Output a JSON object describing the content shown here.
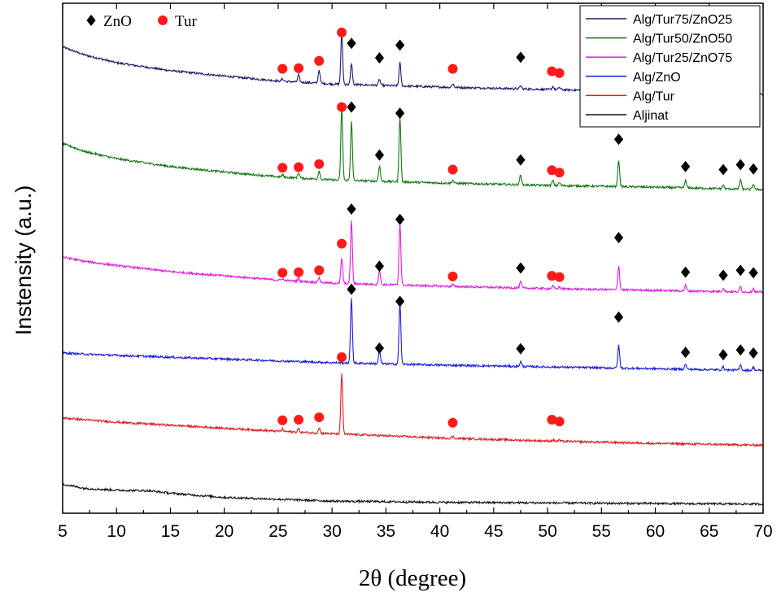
{
  "chart_data": {
    "type": "line",
    "xlabel": "2θ (degree)",
    "ylabel": "Instensity (a.u.)",
    "xlim": [
      5,
      70
    ],
    "xticks": [
      5,
      10,
      15,
      20,
      25,
      30,
      35,
      40,
      45,
      50,
      55,
      60,
      65,
      70
    ],
    "yticks_shown": false,
    "legend_position": "top-right",
    "marker_legend": [
      {
        "symbol": "diamond",
        "label": "ZnO",
        "color": "#000000"
      },
      {
        "symbol": "circle",
        "label": "Tur",
        "color": "#ff1a1a"
      }
    ],
    "series": [
      {
        "name": "Alg/Tur75/ZnO25",
        "color": "#1a1a70",
        "offset": 68.2,
        "baseline": [
          [
            5,
            8.6
          ],
          [
            7,
            7.3
          ],
          [
            10,
            6.0
          ],
          [
            15,
            4.7
          ],
          [
            20,
            3.8
          ],
          [
            25,
            3.0
          ],
          [
            30,
            2.5
          ],
          [
            40,
            2.0
          ],
          [
            50,
            1.6
          ],
          [
            60,
            1.2
          ],
          [
            70,
            0.8
          ]
        ],
        "peaks": [
          [
            25.4,
            0.4
          ],
          [
            26.9,
            1.2
          ],
          [
            28.8,
            2.2
          ],
          [
            30.9,
            8.5
          ],
          [
            31.8,
            3.5
          ],
          [
            34.4,
            1.0
          ],
          [
            36.3,
            3.8
          ],
          [
            41.2,
            0.6
          ],
          [
            47.5,
            0.5
          ],
          [
            50.5,
            0.5
          ],
          [
            51.1,
            0.4
          ],
          [
            56.6,
            1.4
          ],
          [
            62.8,
            0.4
          ],
          [
            66.3,
            0.3
          ],
          [
            67.9,
            0.7
          ],
          [
            69.1,
            0.4
          ]
        ],
        "markers": [
          [
            "circle",
            25.4,
            73.2
          ],
          [
            "circle",
            26.9,
            73.3
          ],
          [
            "circle",
            28.8,
            74.5
          ],
          [
            "circle",
            30.9,
            79.2
          ],
          [
            "diamond",
            31.8,
            77.4
          ],
          [
            "diamond",
            34.4,
            75.0
          ],
          [
            "diamond",
            36.3,
            77.1
          ],
          [
            "circle",
            41.2,
            73.2
          ],
          [
            "diamond",
            47.5,
            75.1
          ],
          [
            "circle",
            50.4,
            72.8
          ],
          [
            "circle",
            51.1,
            72.5
          ],
          [
            "diamond",
            56.6,
            74.8
          ],
          [
            "diamond",
            62.8,
            72.4
          ],
          [
            "diamond",
            66.3,
            72.2
          ],
          [
            "diamond",
            67.9,
            73.0
          ],
          [
            "diamond",
            69.1,
            72.4
          ]
        ]
      },
      {
        "name": "Alg/Tur50/ZnO50",
        "color": "#117711",
        "offset": 52.6,
        "baseline": [
          [
            5,
            8.3
          ],
          [
            7,
            7.0
          ],
          [
            10,
            5.8
          ],
          [
            15,
            4.5
          ],
          [
            20,
            3.6
          ],
          [
            25,
            2.8
          ],
          [
            30,
            2.3
          ],
          [
            40,
            1.8
          ],
          [
            50,
            1.4
          ],
          [
            60,
            1.1
          ],
          [
            70,
            0.7
          ]
        ],
        "peaks": [
          [
            25.4,
            0.4
          ],
          [
            26.9,
            0.9
          ],
          [
            28.8,
            1.4
          ],
          [
            30.9,
            12.0
          ],
          [
            31.8,
            9.8
          ],
          [
            34.4,
            2.6
          ],
          [
            36.3,
            10.8
          ],
          [
            41.2,
            0.5
          ],
          [
            47.5,
            1.7
          ],
          [
            50.5,
            0.8
          ],
          [
            51.1,
            0.5
          ],
          [
            56.6,
            4.4
          ],
          [
            62.8,
            1.2
          ],
          [
            66.3,
            0.6
          ],
          [
            67.9,
            1.6
          ],
          [
            69.1,
            0.9
          ]
        ],
        "markers": [
          [
            "circle",
            25.4,
            56.9
          ],
          [
            "circle",
            26.9,
            57.0
          ],
          [
            "circle",
            28.8,
            57.5
          ],
          [
            "circle",
            30.9,
            66.9
          ],
          [
            "diamond",
            31.8,
            66.9
          ],
          [
            "diamond",
            34.4,
            59.0
          ],
          [
            "diamond",
            36.3,
            65.9
          ],
          [
            "circle",
            41.2,
            56.6
          ],
          [
            "diamond",
            47.5,
            58.2
          ],
          [
            "circle",
            50.4,
            56.5
          ],
          [
            "circle",
            51.1,
            56.1
          ],
          [
            "diamond",
            56.6,
            61.6
          ],
          [
            "diamond",
            62.8,
            57.1
          ],
          [
            "diamond",
            66.3,
            56.6
          ],
          [
            "diamond",
            67.9,
            57.4
          ],
          [
            "diamond",
            69.1,
            56.7
          ]
        ]
      },
      {
        "name": "Alg/Tur25/ZnO75",
        "color": "#e11ae1",
        "offset": 35.8,
        "baseline": [
          [
            5,
            6.4
          ],
          [
            7,
            5.7
          ],
          [
            10,
            5.0
          ],
          [
            15,
            4.0
          ],
          [
            20,
            3.3
          ],
          [
            25,
            2.6
          ],
          [
            30,
            2.1
          ],
          [
            40,
            1.6
          ],
          [
            50,
            1.2
          ],
          [
            60,
            0.9
          ],
          [
            70,
            0.6
          ]
        ],
        "peaks": [
          [
            25.4,
            0.3
          ],
          [
            26.9,
            0.5
          ],
          [
            28.8,
            0.8
          ],
          [
            30.9,
            4.2
          ],
          [
            31.8,
            10.5
          ],
          [
            34.4,
            2.4
          ],
          [
            36.3,
            10.2
          ],
          [
            41.2,
            0.3
          ],
          [
            47.5,
            1.0
          ],
          [
            50.5,
            0.4
          ],
          [
            51.1,
            0.3
          ],
          [
            56.6,
            4.0
          ],
          [
            62.8,
            0.9
          ],
          [
            66.3,
            0.6
          ],
          [
            67.9,
            0.9
          ],
          [
            69.1,
            0.6
          ]
        ],
        "markers": [
          [
            "circle",
            25.4,
            39.6
          ],
          [
            "circle",
            26.9,
            39.7
          ],
          [
            "circle",
            28.8,
            40.0
          ],
          [
            "circle",
            30.9,
            44.4
          ],
          [
            "diamond",
            31.8,
            50.1
          ],
          [
            "diamond",
            34.4,
            40.7
          ],
          [
            "diamond",
            36.3,
            48.4
          ],
          [
            "circle",
            41.2,
            39.0
          ],
          [
            "diamond",
            47.5,
            40.4
          ],
          [
            "circle",
            50.4,
            39.1
          ],
          [
            "circle",
            51.1,
            38.9
          ],
          [
            "diamond",
            56.6,
            45.4
          ],
          [
            "diamond",
            62.8,
            39.7
          ],
          [
            "diamond",
            66.3,
            39.2
          ],
          [
            "diamond",
            67.9,
            40.0
          ],
          [
            "diamond",
            69.1,
            39.6
          ]
        ]
      },
      {
        "name": "Alg/ZnO",
        "color": "#1a1ae1",
        "offset": 23.0,
        "baseline": [
          [
            5,
            3.4
          ],
          [
            7,
            3.2
          ],
          [
            10,
            3.0
          ],
          [
            15,
            2.7
          ],
          [
            20,
            2.4
          ],
          [
            25,
            2.1
          ],
          [
            30,
            1.8
          ],
          [
            40,
            1.4
          ],
          [
            50,
            1.1
          ],
          [
            60,
            0.8
          ],
          [
            70,
            0.5
          ]
        ],
        "peaks": [
          [
            31.8,
            10.7
          ],
          [
            34.4,
            2.2
          ],
          [
            36.3,
            10.3
          ],
          [
            47.5,
            0.8
          ],
          [
            56.6,
            3.7
          ],
          [
            62.8,
            0.8
          ],
          [
            66.3,
            0.5
          ],
          [
            67.9,
            0.9
          ],
          [
            69.1,
            0.5
          ]
        ],
        "markers": [
          [
            "diamond",
            31.8,
            36.9
          ],
          [
            "diamond",
            34.4,
            27.2
          ],
          [
            "diamond",
            36.3,
            34.9
          ],
          [
            "diamond",
            47.5,
            27.1
          ],
          [
            "diamond",
            56.6,
            32.3
          ],
          [
            "diamond",
            62.8,
            26.5
          ],
          [
            "diamond",
            66.3,
            26.1
          ],
          [
            "diamond",
            67.9,
            26.9
          ],
          [
            "diamond",
            69.1,
            26.4
          ]
        ]
      },
      {
        "name": "Alg/Tur",
        "color": "#e11a1a",
        "offset": 11.0,
        "baseline": [
          [
            5,
            4.7
          ],
          [
            7,
            4.4
          ],
          [
            10,
            4.0
          ],
          [
            15,
            3.5
          ],
          [
            20,
            3.0
          ],
          [
            25,
            2.5
          ],
          [
            30,
            2.1
          ],
          [
            40,
            1.4
          ],
          [
            50,
            0.9
          ],
          [
            60,
            0.5
          ],
          [
            70,
            0.2
          ]
        ],
        "peaks": [
          [
            25.4,
            0.4
          ],
          [
            26.9,
            0.6
          ],
          [
            28.8,
            0.9
          ],
          [
            30.9,
            10.0
          ],
          [
            41.2,
            0.3
          ],
          [
            50.5,
            0.2
          ],
          [
            51.1,
            0.2
          ]
        ],
        "markers": [
          [
            "circle",
            25.4,
            15.3
          ],
          [
            "circle",
            26.9,
            15.4
          ],
          [
            "circle",
            28.8,
            15.8
          ],
          [
            "circle",
            30.9,
            25.7
          ],
          [
            "circle",
            41.2,
            14.9
          ],
          [
            "circle",
            50.4,
            15.4
          ],
          [
            "circle",
            51.1,
            15.1
          ]
        ]
      },
      {
        "name": "Aljinat",
        "color": "#111111",
        "offset": 1.0,
        "baseline": [
          [
            5,
            3.8
          ],
          [
            7,
            3.1
          ],
          [
            10,
            2.8
          ],
          [
            13,
            2.7
          ],
          [
            15,
            2.3
          ],
          [
            20,
            1.6
          ],
          [
            25,
            1.3
          ],
          [
            30,
            1.0
          ],
          [
            40,
            0.8
          ],
          [
            50,
            0.7
          ],
          [
            60,
            0.6
          ],
          [
            70,
            0.5
          ]
        ],
        "peaks": [],
        "markers": []
      }
    ]
  }
}
